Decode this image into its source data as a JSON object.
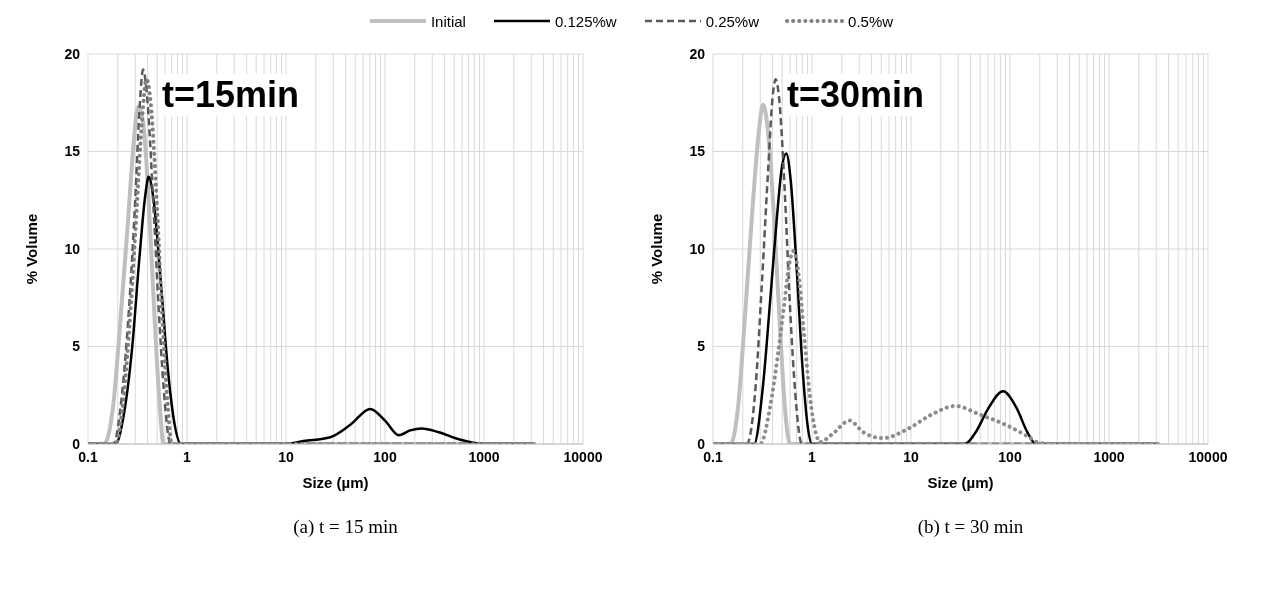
{
  "chart_data": [
    {
      "type": "line",
      "title": "t=15min",
      "xlabel": "Size (µm)",
      "ylabel": "% Volume",
      "annotations": [
        "(a) t = 15 min"
      ],
      "log": "x",
      "grid": true,
      "legend": "top",
      "marker": "none",
      "xlim": [
        0.1,
        10000
      ],
      "ylim": [
        0,
        20
      ],
      "yticks": [
        0,
        5,
        10,
        15,
        20
      ],
      "xticks": [
        0.1,
        {
          "value": 0.2,
          "label": null
        },
        {
          "value": 0.3,
          "label": null
        },
        {
          "value": 0.4,
          "label": null
        },
        {
          "value": 0.5,
          "label": null
        },
        {
          "value": 0.6,
          "label": null
        },
        {
          "value": 0.7,
          "label": null
        },
        {
          "value": 0.8,
          "label": null
        },
        {
          "value": 0.9,
          "label": null
        },
        1,
        {
          "value": 2,
          "label": null
        },
        {
          "value": 3,
          "label": null
        },
        {
          "value": 4,
          "label": null
        },
        {
          "value": 5,
          "label": null
        },
        {
          "value": 6,
          "label": null
        },
        {
          "value": 7,
          "label": null
        },
        {
          "value": 8,
          "label": null
        },
        {
          "value": 9,
          "label": null
        },
        10,
        {
          "value": 20,
          "label": null
        },
        {
          "value": 30,
          "label": null
        },
        {
          "value": 40,
          "label": null
        },
        {
          "value": 50,
          "label": null
        },
        {
          "value": 60,
          "label": null
        },
        {
          "value": 70,
          "label": null
        },
        {
          "value": 80,
          "label": null
        },
        {
          "value": 90,
          "label": null
        },
        100,
        {
          "value": 200,
          "label": null
        },
        {
          "value": 300,
          "label": null
        },
        {
          "value": 400,
          "label": null
        },
        {
          "value": 500,
          "label": null
        },
        {
          "value": 600,
          "label": null
        },
        {
          "value": 700,
          "label": null
        },
        {
          "value": 800,
          "label": null
        },
        {
          "value": 900,
          "label": null
        },
        1000,
        {
          "value": 2000,
          "label": null
        },
        {
          "value": 3000,
          "label": null
        },
        {
          "value": 4000,
          "label": null
        },
        {
          "value": 5000,
          "label": null
        },
        {
          "value": 6000,
          "label": null
        },
        {
          "value": 7000,
          "label": null
        },
        {
          "value": 8000,
          "label": null
        },
        {
          "value": 9000,
          "label": null
        },
        10000
      ],
      "series": [
        {
          "name": "Initial",
          "color": "#bfbfbf",
          "line_style": "solid",
          "x": [
            0.1,
            0.145,
            0.18,
            0.21,
            0.25,
            0.29,
            0.32,
            0.36,
            0.41,
            0.47,
            0.53,
            0.58,
            1,
            10,
            100,
            1000,
            3200
          ],
          "values": [
            0,
            0,
            2,
            6,
            11,
            15.5,
            17.3,
            16.5,
            12.5,
            6.5,
            2,
            0,
            0,
            0,
            0,
            0,
            0
          ]
        },
        {
          "name": "0.125%w",
          "color": "#000000",
          "line_style": "solid",
          "x": [
            0.1,
            0.19,
            0.23,
            0.28,
            0.33,
            0.38,
            0.41,
            0.46,
            0.55,
            0.65,
            0.75,
            0.87,
            1,
            10,
            15,
            28,
            45,
            71,
            100,
            138,
            180,
            235,
            350,
            550,
            1000,
            3200
          ],
          "values": [
            0,
            0,
            1.5,
            5,
            9.5,
            12.8,
            13.7,
            12.5,
            8,
            3.5,
            1,
            0,
            0,
            0,
            0.15,
            0.35,
            1,
            1.8,
            1.2,
            0.45,
            0.7,
            0.8,
            0.6,
            0.25,
            0,
            0
          ]
        },
        {
          "name": "0.25%w",
          "color": "#595959",
          "line_style": "dashed",
          "x": [
            0.1,
            0.18,
            0.22,
            0.26,
            0.3,
            0.33,
            0.36,
            0.4,
            0.46,
            0.53,
            0.6,
            0.68,
            1,
            10,
            100,
            1000,
            3200
          ],
          "values": [
            0,
            0,
            2.5,
            7,
            12.5,
            17,
            19.2,
            17.5,
            12,
            6,
            2,
            0,
            0,
            0,
            0,
            0,
            0
          ]
        },
        {
          "name": "0.5%w",
          "color": "#7f7f7f",
          "line_style": "dotted",
          "x": [
            0.1,
            0.19,
            0.23,
            0.27,
            0.31,
            0.35,
            0.39,
            0.43,
            0.5,
            0.57,
            0.64,
            0.7,
            1,
            10,
            100,
            1000,
            3200
          ],
          "values": [
            0,
            0,
            2.5,
            7,
            12,
            16.5,
            18.7,
            17.5,
            12,
            6,
            2,
            0,
            0,
            0,
            0,
            0,
            0
          ]
        }
      ]
    },
    {
      "type": "line",
      "title": "t=30min",
      "xlabel": "Size (µm)",
      "ylabel": "% Volume",
      "annotations": [
        "(b) t = 30 min"
      ],
      "log": "x",
      "grid": true,
      "legend": "top",
      "marker": "none",
      "xlim": [
        0.1,
        10000
      ],
      "ylim": [
        0,
        20
      ],
      "yticks": [
        0,
        5,
        10,
        15,
        20
      ],
      "xticks": [
        0.1,
        {
          "value": 0.2,
          "label": null
        },
        {
          "value": 0.3,
          "label": null
        },
        {
          "value": 0.4,
          "label": null
        },
        {
          "value": 0.5,
          "label": null
        },
        {
          "value": 0.6,
          "label": null
        },
        {
          "value": 0.7,
          "label": null
        },
        {
          "value": 0.8,
          "label": null
        },
        {
          "value": 0.9,
          "label": null
        },
        1,
        {
          "value": 2,
          "label": null
        },
        {
          "value": 3,
          "label": null
        },
        {
          "value": 4,
          "label": null
        },
        {
          "value": 5,
          "label": null
        },
        {
          "value": 6,
          "label": null
        },
        {
          "value": 7,
          "label": null
        },
        {
          "value": 8,
          "label": null
        },
        {
          "value": 9,
          "label": null
        },
        10,
        {
          "value": 20,
          "label": null
        },
        {
          "value": 30,
          "label": null
        },
        {
          "value": 40,
          "label": null
        },
        {
          "value": 50,
          "label": null
        },
        {
          "value": 60,
          "label": null
        },
        {
          "value": 70,
          "label": null
        },
        {
          "value": 80,
          "label": null
        },
        {
          "value": 90,
          "label": null
        },
        100,
        {
          "value": 200,
          "label": null
        },
        {
          "value": 300,
          "label": null
        },
        {
          "value": 400,
          "label": null
        },
        {
          "value": 500,
          "label": null
        },
        {
          "value": 600,
          "label": null
        },
        {
          "value": 700,
          "label": null
        },
        {
          "value": 800,
          "label": null
        },
        {
          "value": 900,
          "label": null
        },
        1000,
        {
          "value": 2000,
          "label": null
        },
        {
          "value": 3000,
          "label": null
        },
        {
          "value": 4000,
          "label": null
        },
        {
          "value": 5000,
          "label": null
        },
        {
          "value": 6000,
          "label": null
        },
        {
          "value": 7000,
          "label": null
        },
        {
          "value": 8000,
          "label": null
        },
        {
          "value": 9000,
          "label": null
        },
        10000
      ],
      "series": [
        {
          "name": "Initial",
          "color": "#bfbfbf",
          "line_style": "solid",
          "x": [
            0.1,
            0.15,
            0.18,
            0.21,
            0.25,
            0.29,
            0.32,
            0.36,
            0.42,
            0.48,
            0.54,
            0.6,
            1,
            10,
            100,
            1000,
            3200
          ],
          "values": [
            0,
            0,
            2,
            6.5,
            12,
            16,
            17.4,
            16,
            11,
            5.5,
            1.5,
            0,
            0,
            0,
            0,
            0,
            0
          ]
        },
        {
          "name": "0.125%w",
          "color": "#000000",
          "line_style": "solid",
          "x": [
            0.1,
            0.26,
            0.32,
            0.38,
            0.44,
            0.5,
            0.55,
            0.61,
            0.7,
            0.8,
            0.9,
            1,
            10,
            35,
            45,
            60,
            85,
            115,
            150,
            182,
            1000,
            3200
          ],
          "values": [
            0,
            0,
            3,
            7.5,
            11.5,
            14.3,
            14.9,
            13.5,
            9,
            4,
            1,
            0,
            0,
            0,
            0.6,
            1.8,
            2.7,
            1.9,
            0.6,
            0,
            0,
            0
          ]
        },
        {
          "name": "0.25%w",
          "color": "#595959",
          "line_style": "dashed",
          "x": [
            0.1,
            0.22,
            0.27,
            0.31,
            0.36,
            0.4,
            0.43,
            0.47,
            0.53,
            0.6,
            0.68,
            0.79,
            1,
            10,
            100,
            1000,
            3200
          ],
          "values": [
            0,
            0,
            3,
            8,
            14,
            17.8,
            18.7,
            17.5,
            13,
            7,
            2.5,
            0,
            0,
            0,
            0,
            0,
            0
          ]
        },
        {
          "name": "0.5%w",
          "color": "#8c8c8c",
          "line_style": "dotted",
          "x": [
            0.1,
            0.3,
            0.38,
            0.45,
            0.52,
            0.58,
            0.65,
            0.72,
            0.82,
            0.95,
            1.1,
            1.2,
            1.6,
            2.4,
            3.3,
            5.2,
            9.5,
            16,
            28,
            50,
            89,
            150,
            200,
            300,
            1000,
            3200
          ],
          "values": [
            0,
            0,
            2,
            4.5,
            7,
            9,
            9.9,
            9,
            6,
            2.5,
            0.5,
            0.1,
            0.5,
            1.2,
            0.6,
            0.3,
            0.8,
            1.5,
            1.95,
            1.5,
            1,
            0.4,
            0.05,
            0,
            0,
            0
          ]
        }
      ]
    }
  ]
}
